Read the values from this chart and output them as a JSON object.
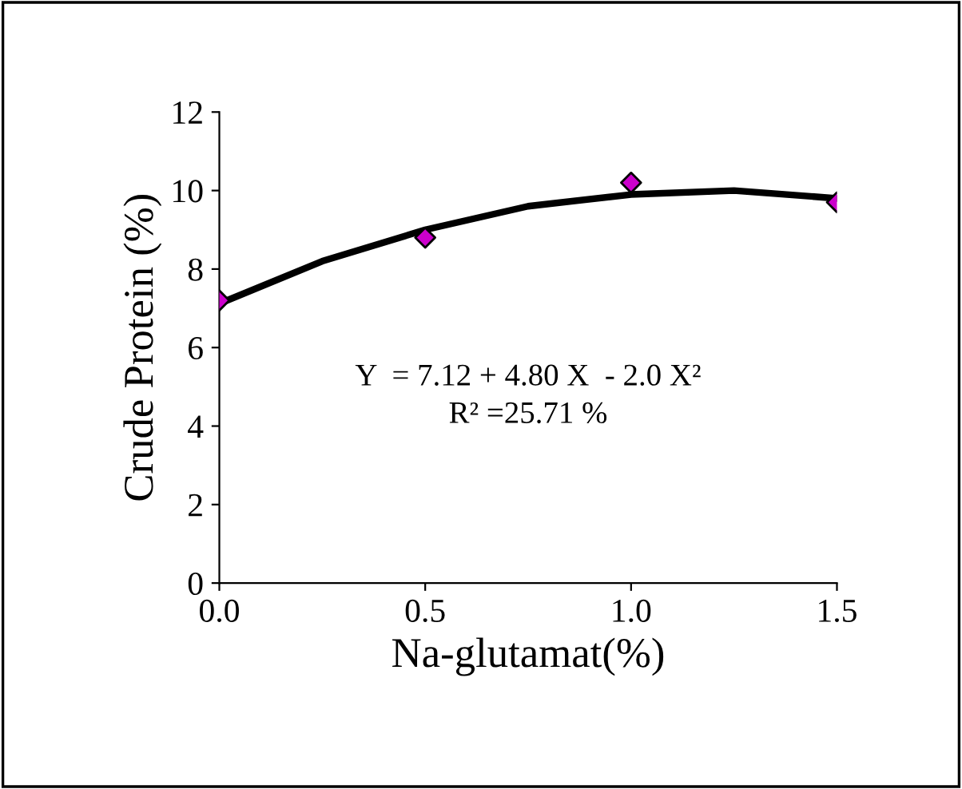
{
  "chart_data": {
    "type": "scatter",
    "xlabel": "Na-glutamat(%)",
    "ylabel": "Crude Protein (%)",
    "series": [
      {
        "type": "line",
        "color": "#000000",
        "marker": "none",
        "x": [
          0,
          0.25,
          0.5,
          0.75,
          1.0,
          1.25,
          1.5
        ],
        "values": [
          7.12,
          8.2,
          9.0,
          9.6,
          9.9,
          10.0,
          9.8
        ]
      },
      {
        "color": "#cc00cc",
        "marker": "diamond",
        "x": [
          0,
          0.5,
          1.0,
          1.5
        ],
        "values": [
          7.2,
          8.8,
          10.2,
          9.7
        ]
      }
    ],
    "xlim": [
      0,
      1.5
    ],
    "xticks": [
      {
        "value": 0,
        "label": "0.0"
      },
      0.5,
      {
        "value": 1,
        "label": "1.0"
      },
      1.5
    ],
    "ylim": [
      0,
      12
    ],
    "yticks": [
      0,
      2,
      4,
      6,
      8,
      10,
      12
    ],
    "grid": false,
    "legend": false,
    "annotations": [
      "Y  = 7.12 + 4.80 X  - 2.0 X²",
      "R² =25.71 %"
    ]
  }
}
